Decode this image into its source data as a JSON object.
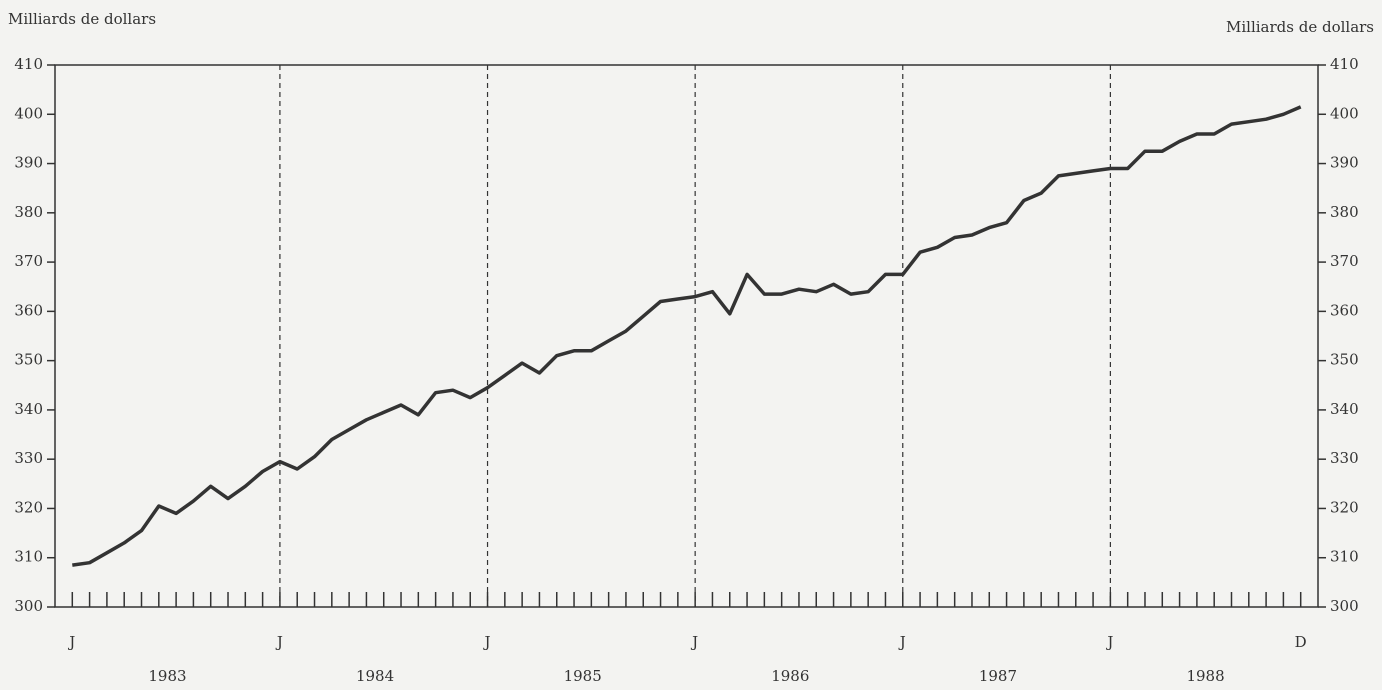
{
  "chart_data": {
    "type": "line",
    "y_label": "Milliards de dollars",
    "y2_label": "Milliards de dollars",
    "categories": [
      "J",
      null,
      null,
      null,
      null,
      null,
      null,
      null,
      null,
      null,
      null,
      null,
      "J",
      null,
      null,
      null,
      null,
      null,
      null,
      null,
      null,
      null,
      null,
      null,
      "J",
      null,
      null,
      null,
      null,
      null,
      null,
      null,
      null,
      null,
      null,
      null,
      "J",
      null,
      null,
      null,
      null,
      null,
      null,
      null,
      null,
      null,
      null,
      null,
      "J",
      null,
      null,
      null,
      null,
      null,
      null,
      null,
      null,
      null,
      null,
      null,
      "J",
      null,
      null,
      null,
      null,
      null,
      null,
      null,
      null,
      null,
      null,
      "D"
    ],
    "years": [
      "1983",
      "1984",
      "1985",
      "1986",
      "1987",
      "1988"
    ],
    "series": [
      {
        "name": null,
        "color": "#333333",
        "values": [
          308.5,
          309,
          311,
          313,
          315.5,
          320.5,
          319,
          321.5,
          324.5,
          322,
          324.5,
          327.5,
          329.5,
          328,
          330.5,
          334,
          336,
          338,
          339.5,
          341,
          339,
          343.5,
          344,
          342.5,
          344.5,
          347,
          349.5,
          347.5,
          351,
          352,
          352,
          354,
          356,
          359,
          362,
          362.5,
          363,
          364,
          359.5,
          367.5,
          363.5,
          363.5,
          364.5,
          364,
          365.5,
          363.5,
          364,
          367.5,
          367.5,
          372,
          373,
          375,
          375.5,
          377,
          378,
          382.5,
          384,
          387.5,
          388,
          388.5,
          389,
          389,
          392.5,
          392.5,
          394.5,
          396,
          396,
          398,
          398.5,
          399,
          400,
          401.5
        ]
      }
    ],
    "ylim": [
      300,
      410
    ],
    "yticks": [
      300,
      310,
      320,
      330,
      340,
      350,
      360,
      370,
      380,
      390,
      400,
      410
    ],
    "y2lim": [
      300,
      410
    ],
    "y2ticks": [
      300,
      310,
      320,
      330,
      340,
      350,
      360,
      370,
      380,
      390,
      400,
      410
    ]
  }
}
